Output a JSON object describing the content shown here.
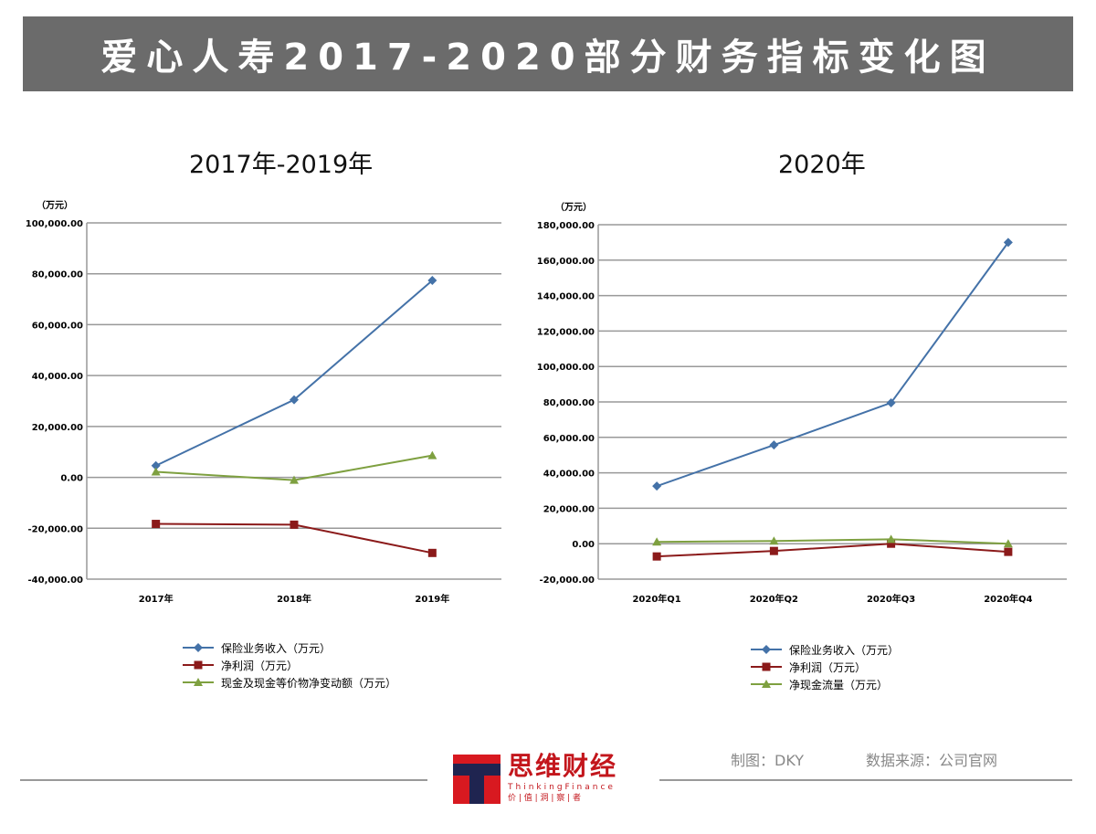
{
  "title": "爱心人寿2017-2020部分财务指标变化图",
  "chart_data": [
    {
      "type": "line",
      "title": "2017年-2019年",
      "unit_label": "（万元）",
      "categories": [
        "2017年",
        "2018年",
        "2019年"
      ],
      "ylim": [
        -40000,
        100000
      ],
      "yticks": [
        100000,
        80000,
        60000,
        40000,
        20000,
        0,
        -20000,
        -40000
      ],
      "ytick_labels": [
        "100,000.00",
        "80,000.00",
        "60,000.00",
        "40,000.00",
        "20,000.00",
        "0.00",
        "-20,000.00",
        "-40,000.00"
      ],
      "legend_position": "bottom",
      "series": [
        {
          "name": "保险业务收入（万元）",
          "color": "#4472a8",
          "marker": "diamond",
          "values": [
            4600,
            30500,
            77400
          ]
        },
        {
          "name": "净利润（万元）",
          "color": "#8b1a1a",
          "marker": "square",
          "values": [
            -18300,
            -18600,
            -29700
          ]
        },
        {
          "name": "现金及现金等价物净变动额（万元）",
          "color": "#7ea040",
          "marker": "triangle",
          "values": [
            2200,
            -1100,
            8600
          ]
        }
      ]
    },
    {
      "type": "line",
      "title": "2020年",
      "unit_label": "（万元）",
      "categories": [
        "2020年Q1",
        "2020年Q2",
        "2020年Q3",
        "2020年Q4"
      ],
      "ylim": [
        -20000,
        180000
      ],
      "yticks": [
        180000,
        160000,
        140000,
        120000,
        100000,
        80000,
        60000,
        40000,
        20000,
        0,
        -20000
      ],
      "ytick_labels": [
        "180,000.00",
        "160,000.00",
        "140,000.00",
        "120,000.00",
        "100,000.00",
        "80,000.00",
        "60,000.00",
        "40,000.00",
        "20,000.00",
        "0.00",
        "-20,000.00"
      ],
      "legend_position": "bottom",
      "series": [
        {
          "name": "保险业务收入（万元）",
          "color": "#4472a8",
          "marker": "diamond",
          "values": [
            32500,
            55700,
            79500,
            170000
          ]
        },
        {
          "name": "净利润（万元）",
          "color": "#8b1a1a",
          "marker": "square",
          "values": [
            -7200,
            -4100,
            0,
            -4600
          ]
        },
        {
          "name": "净现金流量（万元）",
          "color": "#7ea040",
          "marker": "triangle",
          "values": [
            1000,
            1500,
            2500,
            0
          ]
        }
      ]
    }
  ],
  "footer": {
    "maker": "制图：DKY",
    "source": "数据来源：公司官网",
    "brand_cn": "思维财经",
    "brand_en": "ThinkingFinance",
    "slogan": "价 | 值 | 洞 | 察 | 者"
  }
}
